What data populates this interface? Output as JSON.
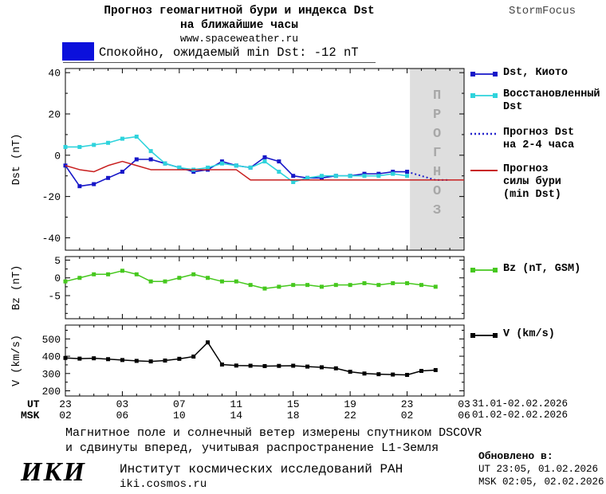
{
  "page": {
    "title_line1": "Прогноз геомагнитной бури и индекса Dst",
    "title_line2": "на ближайшие часы",
    "website": "www.spaceweather.ru",
    "brand": "StormFocus"
  },
  "status": {
    "text": "Спокойно, ожидаемый min Dst: -12 nT"
  },
  "colors": {
    "dst_kyoto": "#1616c8",
    "restored_dst": "#2ed3dc",
    "forecast_dst": "#2222cc",
    "storm_forecast": "#c81e1e",
    "bz": "#46c81e",
    "v": "#000000",
    "status_quiet": "#0b10dc",
    "forecast_region_fill": "#dedede",
    "watermark_text": "#a8a8a8"
  },
  "legend": {
    "dst_kyoto": "Dst, Киото",
    "restored_line1": "Восстановленный",
    "restored_line2": "Dst",
    "forecast_line1": "Прогноз Dst",
    "forecast_line2": "на 2-4 часа",
    "storm_line1": "Прогноз",
    "storm_line2": "силы бури",
    "storm_line3": "(min Dst)",
    "bz": "Bz (nT, GSM)",
    "v": "V (km/s)"
  },
  "axes": {
    "ut_label": "UT",
    "msk_label": "MSK",
    "ut_ticks": [
      "23",
      "03",
      "07",
      "11",
      "15",
      "19",
      "23",
      "03"
    ],
    "msk_ticks": [
      "02",
      "06",
      "10",
      "14",
      "18",
      "22",
      "02",
      "06"
    ],
    "ut_range": "31.01-02.02.2026",
    "msk_range": "01.02-02.02.2026"
  },
  "footer": {
    "note_line1": "Магнитное поле и солнечный ветер измерены спутником DSCOVR",
    "note_line2": "и сдвинуты вперед, учитывая распространение L1-Земля",
    "logo": "ИКИ",
    "institute": "Институт космических исследований РАН",
    "site": "iki.cosmos.ru",
    "updated_label": "Обновлено в:",
    "updated_ut": "UT  23:05, 01.02.2026",
    "updated_msk": "MSK 02:05, 02.02.2026"
  },
  "chart_data": [
    {
      "type": "line",
      "panel": "dst",
      "title": "Прогноз геомагнитной бури и индекса Dst на ближайшие часы",
      "ylabel": "Dst (nT)",
      "x_description": "hours since 23:00 UT 31.01.2026",
      "ylim": [
        -46,
        42
      ],
      "yticks": [
        40,
        20,
        0,
        -20,
        -40
      ],
      "yminor": 10,
      "xlim": [
        0,
        28
      ],
      "xticks": [
        0,
        4,
        8,
        12,
        16,
        20,
        24,
        28
      ],
      "xminor": 1,
      "grid": false,
      "legend_position": "right",
      "forecast_region": {
        "from": 24.2,
        "to": 28,
        "watermark": "ПРОГНОЗ"
      },
      "series": [
        {
          "name": "Dst, Киото",
          "color": "#1616c8",
          "marker": "square",
          "width": 1.6,
          "x": [
            0,
            1,
            2,
            3,
            4,
            5,
            6,
            7,
            8,
            9,
            10,
            11,
            12,
            13,
            14,
            15,
            16,
            17,
            18,
            19,
            20,
            21,
            22,
            23,
            24
          ],
          "values": [
            -5,
            -15,
            -14,
            -11,
            -8,
            -2,
            -2,
            -4,
            -6,
            -8,
            -7,
            -3,
            -5,
            -6,
            -1,
            -3,
            -10,
            -11,
            -11,
            -10,
            -10,
            -9,
            -9,
            -8,
            -8
          ]
        },
        {
          "name": "Восстановленный Dst",
          "color": "#2ed3dc",
          "marker": "square",
          "width": 1.6,
          "x": [
            0,
            1,
            2,
            3,
            4,
            5,
            6,
            7,
            8,
            9,
            10,
            11,
            12,
            13,
            14,
            15,
            16,
            17,
            18,
            19,
            20,
            21,
            22,
            23,
            24
          ],
          "values": [
            4,
            4,
            5,
            6,
            8,
            9,
            2,
            -4,
            -6,
            -7,
            -6,
            -4,
            -5,
            -6,
            -3,
            -8,
            -13,
            -11,
            -10,
            -10,
            -10,
            -10,
            -10,
            -9,
            -10
          ]
        },
        {
          "name": "Прогноз Dst на 2-4 часа",
          "color": "#2222cc",
          "style": "dotted",
          "width": 2,
          "x": [
            24,
            25,
            26,
            27
          ],
          "values": [
            -8,
            -10,
            -12,
            -12
          ]
        },
        {
          "name": "Прогноз силы бури (min Dst)",
          "color": "#c81e1e",
          "width": 1.5,
          "x": [
            0,
            1,
            2,
            3,
            4,
            5,
            6,
            7,
            8,
            9,
            10,
            11,
            12,
            13,
            14,
            15,
            16,
            17,
            18,
            19,
            20,
            21,
            22,
            23,
            24,
            25,
            26,
            27,
            28
          ],
          "values": [
            -5,
            -7,
            -8,
            -5,
            -3,
            -5,
            -7,
            -7,
            -7,
            -7,
            -7,
            -7,
            -7,
            -12,
            -12,
            -12,
            -12,
            -12,
            -12,
            -12,
            -12,
            -12,
            -12,
            -12,
            -12,
            -12,
            -12,
            -12,
            -12
          ]
        }
      ]
    },
    {
      "type": "line",
      "panel": "bz",
      "ylabel": "Bz (nT)",
      "ylim": [
        -11.5,
        6
      ],
      "yticks": [
        5,
        0,
        -5
      ],
      "yminor": 2.5,
      "xlim": [
        0,
        28
      ],
      "xticks": [
        0,
        4,
        8,
        12,
        16,
        20,
        24,
        28
      ],
      "xminor": 1,
      "grid": false,
      "series": [
        {
          "name": "Bz (nT, GSM)",
          "color": "#46c81e",
          "marker": "square",
          "width": 1.5,
          "x": [
            0,
            1,
            2,
            3,
            4,
            5,
            6,
            7,
            8,
            9,
            10,
            11,
            12,
            13,
            14,
            15,
            16,
            17,
            18,
            19,
            20,
            21,
            22,
            23,
            24,
            25,
            26
          ],
          "values": [
            -1,
            0,
            1,
            1,
            2,
            1,
            -1,
            -1,
            0,
            1,
            0,
            -1,
            -1,
            -2,
            -3,
            -2.5,
            -2,
            -2,
            -2.5,
            -2,
            -2,
            -1.5,
            -2,
            -1.5,
            -1.5,
            -2,
            -2.5
          ]
        }
      ]
    },
    {
      "type": "line",
      "panel": "v",
      "ylabel": "V (km/s)",
      "ylim": [
        170,
        580
      ],
      "yticks": [
        500,
        400,
        300,
        200
      ],
      "yminor": 50,
      "xlim": [
        0,
        28
      ],
      "xticks": [
        0,
        4,
        8,
        12,
        16,
        20,
        24,
        28
      ],
      "xminor": 1,
      "grid": false,
      "series": [
        {
          "name": "V (km/s)",
          "color": "#000000",
          "marker": "square",
          "width": 1.5,
          "x": [
            0,
            1,
            2,
            3,
            4,
            5,
            6,
            7,
            8,
            9,
            10,
            11,
            12,
            13,
            14,
            15,
            16,
            17,
            18,
            19,
            20,
            21,
            22,
            23,
            24,
            25,
            26
          ],
          "values": [
            390,
            386,
            388,
            383,
            378,
            373,
            370,
            375,
            385,
            398,
            480,
            352,
            346,
            345,
            343,
            344,
            345,
            340,
            336,
            330,
            310,
            300,
            296,
            294,
            292,
            315,
            320
          ]
        }
      ]
    }
  ]
}
